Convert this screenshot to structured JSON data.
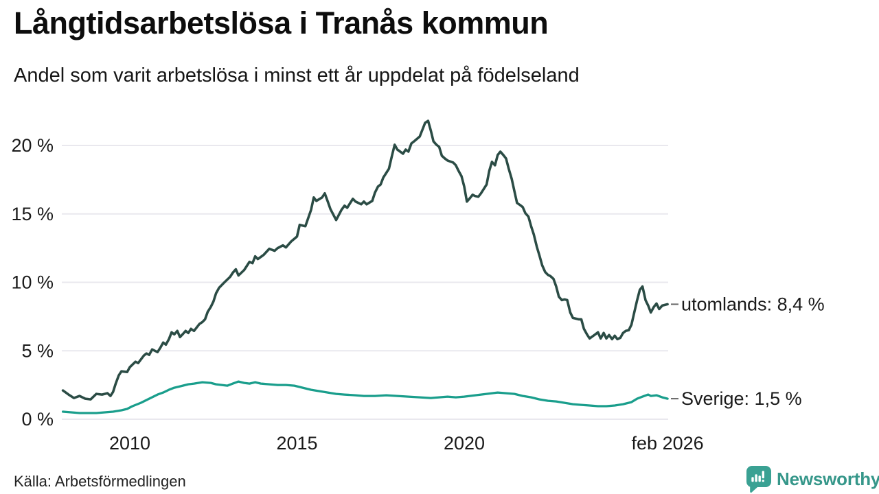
{
  "header": {
    "title": "Långtidsarbetslösa i Tranås kommun",
    "subtitle": "Andel som varit arbetslösa i minst ett år uppdelat på födelseland"
  },
  "footer": {
    "source": "Källa: Arbetsförmedlingen",
    "brand": "Newsworthy"
  },
  "logo": {
    "icon": "bar-chart-speech-bubble-icon",
    "icon_color": "#3AA193",
    "text_color": "#36978A"
  },
  "chart_data": {
    "type": "line",
    "title": "Långtidsarbetslösa i Tranås kommun",
    "subtitle": "Andel som varit arbetslösa i minst ett år uppdelat på födelseland",
    "xlabel": "",
    "ylabel": "",
    "x_unit": "decimal_year",
    "x_range": [
      2008.0,
      2026.08
    ],
    "ylim": [
      0,
      22
    ],
    "grid": "horizontal",
    "legend_position": "end-of-line-labels",
    "colors": {
      "grid": "#E9E8EE",
      "text": "#1a1a1a",
      "label_dash": "#666666",
      "background": "#ffffff"
    },
    "y_ticks": [
      {
        "value": 0,
        "label": "0 %"
      },
      {
        "value": 5,
        "label": "5 %"
      },
      {
        "value": 10,
        "label": "10 %"
      },
      {
        "value": 15,
        "label": "15 %"
      },
      {
        "value": 20,
        "label": "20 %"
      }
    ],
    "x_ticks": [
      {
        "value": 2010,
        "label": "2010"
      },
      {
        "value": 2015,
        "label": "2015"
      },
      {
        "value": 2020,
        "label": "2020"
      },
      {
        "value": 2026.08,
        "label": "feb 2026"
      }
    ],
    "series": [
      {
        "name": "utomlands",
        "label": "utomlands: 8,4 %",
        "end_value": 8.4,
        "color": "#2B4C45",
        "points": [
          [
            2008.0,
            2.1
          ],
          [
            2008.17,
            1.8
          ],
          [
            2008.33,
            1.55
          ],
          [
            2008.5,
            1.7
          ],
          [
            2008.67,
            1.5
          ],
          [
            2008.83,
            1.45
          ],
          [
            2009.0,
            1.85
          ],
          [
            2009.17,
            1.8
          ],
          [
            2009.33,
            1.9
          ],
          [
            2009.42,
            1.7
          ],
          [
            2009.5,
            2.0
          ],
          [
            2009.58,
            2.6
          ],
          [
            2009.67,
            3.2
          ],
          [
            2009.75,
            3.5
          ],
          [
            2009.92,
            3.45
          ],
          [
            2010.0,
            3.8
          ],
          [
            2010.17,
            4.2
          ],
          [
            2010.25,
            4.1
          ],
          [
            2010.42,
            4.65
          ],
          [
            2010.5,
            4.8
          ],
          [
            2010.58,
            4.7
          ],
          [
            2010.67,
            5.1
          ],
          [
            2010.83,
            4.9
          ],
          [
            2010.92,
            5.25
          ],
          [
            2011.0,
            5.6
          ],
          [
            2011.08,
            5.45
          ],
          [
            2011.17,
            5.85
          ],
          [
            2011.25,
            6.35
          ],
          [
            2011.33,
            6.2
          ],
          [
            2011.42,
            6.45
          ],
          [
            2011.5,
            6.0
          ],
          [
            2011.58,
            6.2
          ],
          [
            2011.67,
            6.45
          ],
          [
            2011.75,
            6.3
          ],
          [
            2011.83,
            6.6
          ],
          [
            2011.92,
            6.45
          ],
          [
            2012.0,
            6.7
          ],
          [
            2012.08,
            6.95
          ],
          [
            2012.17,
            7.1
          ],
          [
            2012.25,
            7.3
          ],
          [
            2012.33,
            7.85
          ],
          [
            2012.42,
            8.2
          ],
          [
            2012.5,
            8.6
          ],
          [
            2012.58,
            9.2
          ],
          [
            2012.67,
            9.6
          ],
          [
            2012.83,
            10.0
          ],
          [
            2013.0,
            10.4
          ],
          [
            2013.08,
            10.7
          ],
          [
            2013.17,
            10.95
          ],
          [
            2013.25,
            10.5
          ],
          [
            2013.42,
            10.9
          ],
          [
            2013.58,
            11.5
          ],
          [
            2013.67,
            11.4
          ],
          [
            2013.75,
            11.9
          ],
          [
            2013.83,
            11.7
          ],
          [
            2014.0,
            12.0
          ],
          [
            2014.17,
            12.45
          ],
          [
            2014.33,
            12.3
          ],
          [
            2014.42,
            12.5
          ],
          [
            2014.58,
            12.7
          ],
          [
            2014.67,
            12.55
          ],
          [
            2014.83,
            13.0
          ],
          [
            2015.0,
            13.35
          ],
          [
            2015.08,
            14.2
          ],
          [
            2015.25,
            14.1
          ],
          [
            2015.42,
            15.3
          ],
          [
            2015.5,
            16.2
          ],
          [
            2015.58,
            15.95
          ],
          [
            2015.75,
            16.2
          ],
          [
            2015.83,
            16.5
          ],
          [
            2015.92,
            15.9
          ],
          [
            2016.0,
            15.35
          ],
          [
            2016.17,
            14.55
          ],
          [
            2016.33,
            15.3
          ],
          [
            2016.42,
            15.6
          ],
          [
            2016.5,
            15.45
          ],
          [
            2016.67,
            16.1
          ],
          [
            2016.75,
            15.9
          ],
          [
            2016.92,
            15.7
          ],
          [
            2017.0,
            15.9
          ],
          [
            2017.08,
            15.7
          ],
          [
            2017.25,
            15.95
          ],
          [
            2017.33,
            16.55
          ],
          [
            2017.42,
            17.0
          ],
          [
            2017.5,
            17.15
          ],
          [
            2017.58,
            17.65
          ],
          [
            2017.75,
            18.3
          ],
          [
            2017.83,
            19.15
          ],
          [
            2017.92,
            20.05
          ],
          [
            2018.0,
            19.7
          ],
          [
            2018.17,
            19.4
          ],
          [
            2018.25,
            19.7
          ],
          [
            2018.33,
            19.55
          ],
          [
            2018.42,
            20.15
          ],
          [
            2018.5,
            20.3
          ],
          [
            2018.67,
            20.65
          ],
          [
            2018.75,
            21.15
          ],
          [
            2018.83,
            21.65
          ],
          [
            2018.92,
            21.8
          ],
          [
            2019.0,
            21.1
          ],
          [
            2019.08,
            20.3
          ],
          [
            2019.17,
            20.05
          ],
          [
            2019.25,
            19.9
          ],
          [
            2019.33,
            19.25
          ],
          [
            2019.42,
            19.05
          ],
          [
            2019.5,
            18.9
          ],
          [
            2019.67,
            18.75
          ],
          [
            2019.75,
            18.55
          ],
          [
            2019.83,
            18.15
          ],
          [
            2019.92,
            17.75
          ],
          [
            2020.0,
            17.0
          ],
          [
            2020.08,
            15.9
          ],
          [
            2020.17,
            16.15
          ],
          [
            2020.25,
            16.4
          ],
          [
            2020.33,
            16.3
          ],
          [
            2020.42,
            16.25
          ],
          [
            2020.5,
            16.5
          ],
          [
            2020.67,
            17.15
          ],
          [
            2020.75,
            18.15
          ],
          [
            2020.83,
            18.8
          ],
          [
            2020.92,
            18.55
          ],
          [
            2021.0,
            19.3
          ],
          [
            2021.08,
            19.55
          ],
          [
            2021.17,
            19.3
          ],
          [
            2021.25,
            19.05
          ],
          [
            2021.33,
            18.3
          ],
          [
            2021.42,
            17.55
          ],
          [
            2021.5,
            16.65
          ],
          [
            2021.58,
            15.8
          ],
          [
            2021.67,
            15.65
          ],
          [
            2021.75,
            15.5
          ],
          [
            2021.83,
            15.05
          ],
          [
            2021.92,
            14.8
          ],
          [
            2022.0,
            14.1
          ],
          [
            2022.08,
            13.5
          ],
          [
            2022.17,
            12.6
          ],
          [
            2022.25,
            11.95
          ],
          [
            2022.33,
            11.25
          ],
          [
            2022.42,
            10.75
          ],
          [
            2022.5,
            10.55
          ],
          [
            2022.58,
            10.45
          ],
          [
            2022.67,
            10.25
          ],
          [
            2022.75,
            9.7
          ],
          [
            2022.83,
            8.95
          ],
          [
            2022.92,
            8.7
          ],
          [
            2023.0,
            8.75
          ],
          [
            2023.08,
            8.7
          ],
          [
            2023.17,
            7.8
          ],
          [
            2023.25,
            7.4
          ],
          [
            2023.42,
            7.3
          ],
          [
            2023.5,
            7.3
          ],
          [
            2023.58,
            6.6
          ],
          [
            2023.67,
            6.2
          ],
          [
            2023.75,
            5.9
          ],
          [
            2023.92,
            6.2
          ],
          [
            2024.0,
            6.35
          ],
          [
            2024.08,
            5.9
          ],
          [
            2024.17,
            6.3
          ],
          [
            2024.25,
            5.9
          ],
          [
            2024.33,
            6.15
          ],
          [
            2024.42,
            5.85
          ],
          [
            2024.5,
            6.1
          ],
          [
            2024.58,
            5.85
          ],
          [
            2024.67,
            5.95
          ],
          [
            2024.75,
            6.3
          ],
          [
            2024.83,
            6.45
          ],
          [
            2024.92,
            6.5
          ],
          [
            2025.0,
            6.9
          ],
          [
            2025.08,
            7.75
          ],
          [
            2025.17,
            8.7
          ],
          [
            2025.25,
            9.45
          ],
          [
            2025.33,
            9.7
          ],
          [
            2025.42,
            8.7
          ],
          [
            2025.5,
            8.3
          ],
          [
            2025.58,
            7.8
          ],
          [
            2025.67,
            8.2
          ],
          [
            2025.75,
            8.45
          ],
          [
            2025.83,
            8.05
          ],
          [
            2025.92,
            8.3
          ],
          [
            2026.08,
            8.4
          ]
        ]
      },
      {
        "name": "Sverige",
        "label": "Sverige: 1,5 %",
        "end_value": 1.5,
        "color": "#1A9E8C",
        "points": [
          [
            2008.0,
            0.55
          ],
          [
            2008.25,
            0.5
          ],
          [
            2008.5,
            0.45
          ],
          [
            2008.75,
            0.45
          ],
          [
            2009.0,
            0.45
          ],
          [
            2009.25,
            0.5
          ],
          [
            2009.5,
            0.55
          ],
          [
            2009.75,
            0.65
          ],
          [
            2009.92,
            0.75
          ],
          [
            2010.08,
            0.95
          ],
          [
            2010.33,
            1.2
          ],
          [
            2010.58,
            1.5
          ],
          [
            2010.83,
            1.8
          ],
          [
            2011.0,
            1.95
          ],
          [
            2011.17,
            2.15
          ],
          [
            2011.33,
            2.3
          ],
          [
            2011.5,
            2.4
          ],
          [
            2011.75,
            2.55
          ],
          [
            2011.92,
            2.6
          ],
          [
            2012.17,
            2.7
          ],
          [
            2012.42,
            2.65
          ],
          [
            2012.58,
            2.55
          ],
          [
            2012.75,
            2.5
          ],
          [
            2012.92,
            2.45
          ],
          [
            2013.08,
            2.6
          ],
          [
            2013.25,
            2.75
          ],
          [
            2013.42,
            2.65
          ],
          [
            2013.58,
            2.6
          ],
          [
            2013.75,
            2.7
          ],
          [
            2013.92,
            2.6
          ],
          [
            2014.17,
            2.55
          ],
          [
            2014.42,
            2.5
          ],
          [
            2014.67,
            2.5
          ],
          [
            2014.92,
            2.45
          ],
          [
            2015.17,
            2.3
          ],
          [
            2015.42,
            2.15
          ],
          [
            2015.67,
            2.05
          ],
          [
            2015.92,
            1.95
          ],
          [
            2016.17,
            1.85
          ],
          [
            2016.42,
            1.8
          ],
          [
            2016.75,
            1.75
          ],
          [
            2017.0,
            1.7
          ],
          [
            2017.33,
            1.7
          ],
          [
            2017.67,
            1.75
          ],
          [
            2018.0,
            1.7
          ],
          [
            2018.33,
            1.65
          ],
          [
            2018.67,
            1.6
          ],
          [
            2019.0,
            1.55
          ],
          [
            2019.25,
            1.6
          ],
          [
            2019.5,
            1.65
          ],
          [
            2019.75,
            1.6
          ],
          [
            2020.0,
            1.65
          ],
          [
            2020.33,
            1.75
          ],
          [
            2020.67,
            1.85
          ],
          [
            2021.0,
            1.95
          ],
          [
            2021.25,
            1.9
          ],
          [
            2021.5,
            1.85
          ],
          [
            2021.75,
            1.7
          ],
          [
            2022.0,
            1.6
          ],
          [
            2022.25,
            1.45
          ],
          [
            2022.5,
            1.35
          ],
          [
            2022.75,
            1.3
          ],
          [
            2023.0,
            1.2
          ],
          [
            2023.25,
            1.1
          ],
          [
            2023.5,
            1.05
          ],
          [
            2023.75,
            1.0
          ],
          [
            2024.0,
            0.95
          ],
          [
            2024.25,
            0.95
          ],
          [
            2024.5,
            1.0
          ],
          [
            2024.75,
            1.1
          ],
          [
            2025.0,
            1.25
          ],
          [
            2025.17,
            1.5
          ],
          [
            2025.33,
            1.65
          ],
          [
            2025.5,
            1.8
          ],
          [
            2025.58,
            1.7
          ],
          [
            2025.75,
            1.75
          ],
          [
            2025.92,
            1.6
          ],
          [
            2026.08,
            1.5
          ]
        ]
      }
    ]
  }
}
